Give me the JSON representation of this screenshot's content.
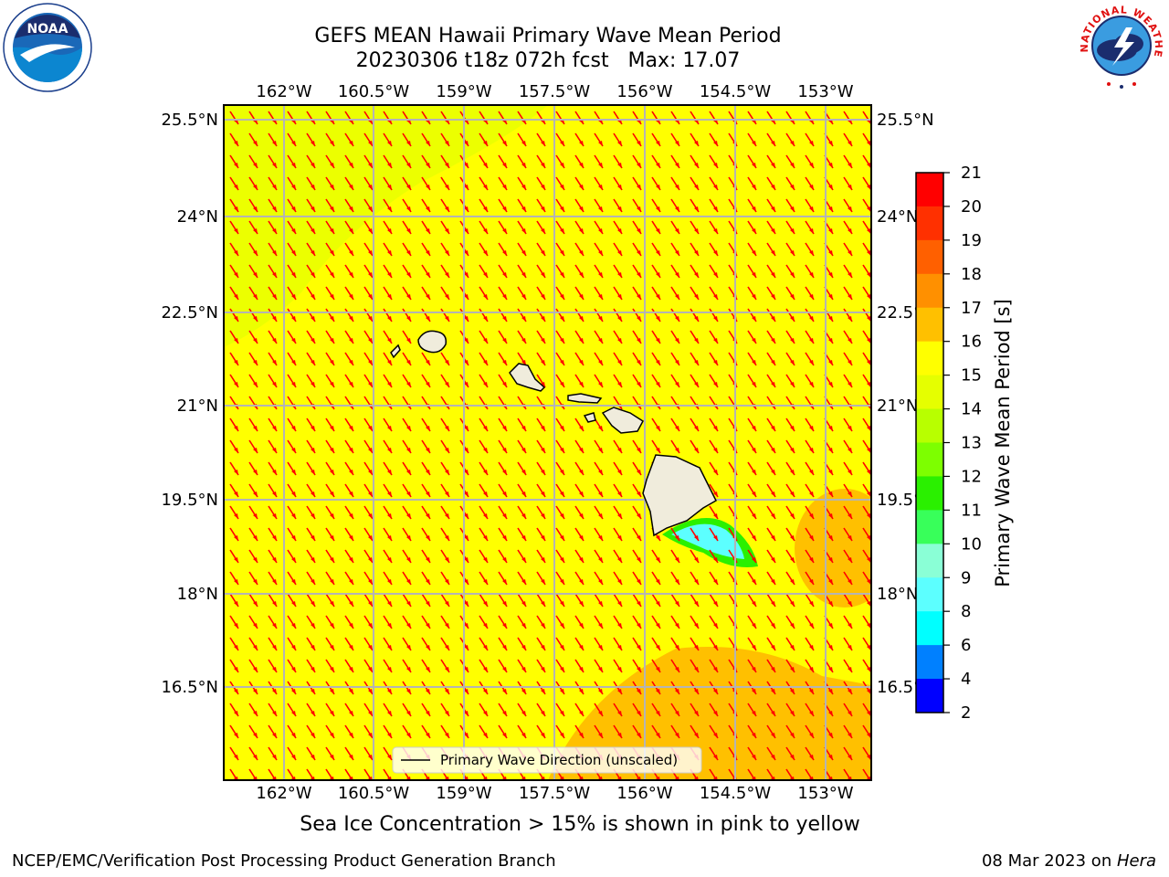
{
  "title": {
    "line1": "GEFS MEAN Hawaii Primary Wave Mean Period",
    "line2": "20230306 t18z 072h fcst   Max: 17.07"
  },
  "logos": {
    "noaa_text": "NOAA",
    "noaa_ring": "NATIONAL OCEANIC AND ATMOSPHERIC ADMINISTRATION · U.S. DEPARTMENT OF COMMERCE",
    "nws_ring": "NATIONAL WEATHER SERVICE"
  },
  "map": {
    "lon_labels": [
      "162°W",
      "160.5°W",
      "159°W",
      "157.5°W",
      "156°W",
      "154.5°W",
      "153°W"
    ],
    "lat_labels": [
      "25.5°N",
      "24°N",
      "22.5°N",
      "21°N",
      "19.5°N",
      "18°N",
      "16.5°N"
    ],
    "legend_label": "Primary Wave Direction (unscaled)",
    "background_color": "#ffff00",
    "arrow_color": "#ff0000"
  },
  "colorbar": {
    "label": "Primary Wave Mean Period [s]",
    "ticks": [
      "21",
      "20",
      "19",
      "18",
      "17",
      "16",
      "15",
      "14",
      "13",
      "12",
      "11",
      "10",
      "9",
      "8",
      "6",
      "4",
      "2"
    ],
    "colors": [
      "#ff0000",
      "#ff3000",
      "#ff6000",
      "#ff9000",
      "#ffc000",
      "#ffff00",
      "#e5ff00",
      "#b8ff00",
      "#7dff00",
      "#2af000",
      "#38ff5a",
      "#8affd6",
      "#5cffff",
      "#00ffff",
      "#0080ff",
      "#0000ff"
    ]
  },
  "subtitle": "Sea Ice Concentration > 15% is shown in pink to yellow",
  "footer": {
    "left": "NCEP/EMC/Verification Post Processing Product Generation Branch",
    "date": "08 Mar 2023 on ",
    "machine": "Hera"
  }
}
